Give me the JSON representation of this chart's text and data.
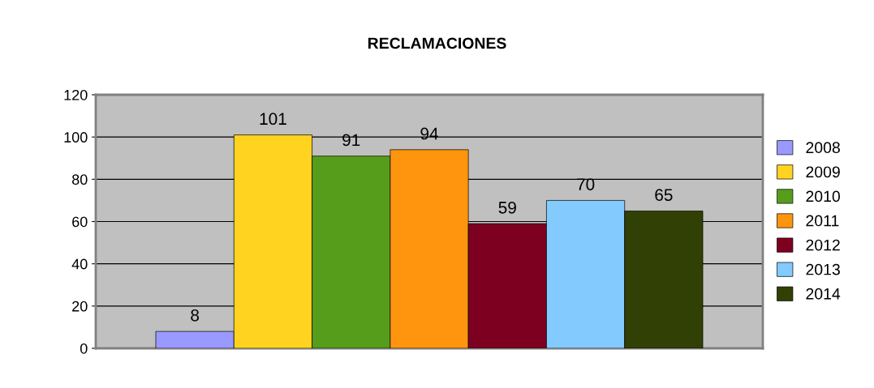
{
  "chart_data": {
    "type": "bar",
    "title": "RECLAMACIONES",
    "categories": [
      null
    ],
    "series": [
      {
        "name": "2008",
        "color": "#9999ff",
        "values": [
          8
        ]
      },
      {
        "name": "2009",
        "color": "#ffd320",
        "values": [
          101
        ]
      },
      {
        "name": "2010",
        "color": "#579d1c",
        "values": [
          91
        ]
      },
      {
        "name": "2011",
        "color": "#ff950e",
        "values": [
          94
        ]
      },
      {
        "name": "2012",
        "color": "#7e0021",
        "values": [
          59
        ]
      },
      {
        "name": "2013",
        "color": "#83caff",
        "values": [
          70
        ]
      },
      {
        "name": "2014",
        "color": "#314004",
        "values": [
          65
        ]
      }
    ],
    "ylim": [
      0,
      120
    ],
    "yticks": [
      0,
      20,
      40,
      60,
      80,
      100,
      120
    ],
    "grid": "y",
    "legend": "right",
    "data_labels": true
  }
}
